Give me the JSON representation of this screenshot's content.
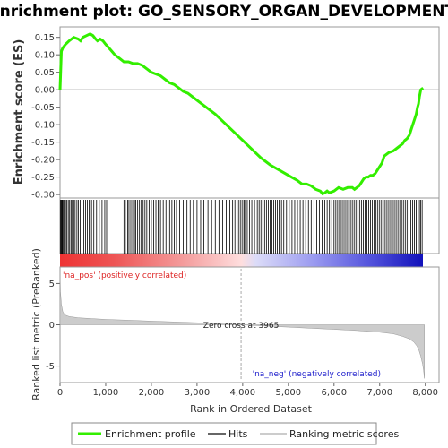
{
  "chart_data": {
    "type": "line",
    "title": "Enrichment plot: GO_SENSORY_ORGAN_DEVELOPMENT",
    "es_panel": {
      "ylabel": "Enrichment score (ES)",
      "yticks": [
        "0.15",
        "0.10",
        "0.05",
        "0.00",
        "-0.05",
        "-0.10",
        "-0.15",
        "-0.20",
        "-0.25",
        "-0.30"
      ],
      "ylim": [
        -0.31,
        0.18
      ],
      "series": [
        {
          "name": "Enrichment profile",
          "color": "#33ee00",
          "x": [
            0,
            30,
            60,
            120,
            200,
            300,
            400,
            450,
            500,
            580,
            660,
            720,
            780,
            820,
            880,
            940,
            1000,
            1100,
            1200,
            1300,
            1400,
            1500,
            1600,
            1700,
            1800,
            1900,
            2000,
            2100,
            2200,
            2300,
            2400,
            2500,
            2600,
            2700,
            2800,
            2900,
            3000,
            3200,
            3400,
            3600,
            3800,
            4000,
            4200,
            4400,
            4600,
            4800,
            5000,
            5200,
            5300,
            5400,
            5500,
            5600,
            5700,
            5750,
            5800,
            5850,
            5900,
            6000,
            6100,
            6200,
            6300,
            6400,
            6450,
            6500,
            6550,
            6600,
            6650,
            6700,
            6750,
            6800,
            6850,
            6900,
            6950,
            7000,
            7050,
            7100,
            7200,
            7300,
            7400,
            7500,
            7550,
            7600,
            7650,
            7700,
            7750,
            7800,
            7830,
            7850,
            7870,
            7900,
            7950
          ],
          "values": [
            0.0,
            0.11,
            0.12,
            0.13,
            0.14,
            0.15,
            0.145,
            0.14,
            0.15,
            0.155,
            0.16,
            0.155,
            0.145,
            0.14,
            0.145,
            0.14,
            0.13,
            0.115,
            0.1,
            0.09,
            0.08,
            0.08,
            0.075,
            0.075,
            0.07,
            0.06,
            0.05,
            0.045,
            0.04,
            0.03,
            0.02,
            0.015,
            0.005,
            -0.005,
            -0.01,
            -0.02,
            -0.03,
            -0.05,
            -0.07,
            -0.095,
            -0.12,
            -0.145,
            -0.17,
            -0.195,
            -0.215,
            -0.23,
            -0.245,
            -0.26,
            -0.27,
            -0.27,
            -0.275,
            -0.285,
            -0.29,
            -0.298,
            -0.295,
            -0.29,
            -0.295,
            -0.29,
            -0.28,
            -0.285,
            -0.28,
            -0.28,
            -0.285,
            -0.28,
            -0.275,
            -0.265,
            -0.255,
            -0.25,
            -0.25,
            -0.245,
            -0.245,
            -0.24,
            -0.23,
            -0.22,
            -0.21,
            -0.19,
            -0.18,
            -0.175,
            -0.165,
            -0.155,
            -0.145,
            -0.14,
            -0.13,
            -0.11,
            -0.09,
            -0.07,
            -0.05,
            -0.04,
            -0.02,
            0.0,
            0.005
          ]
        }
      ]
    },
    "hits": {
      "name": "Hits",
      "color": "#000000",
      "positions": [
        10,
        25,
        40,
        55,
        75,
        95,
        120,
        150,
        180,
        210,
        240,
        260,
        300,
        330,
        370,
        400,
        440,
        480,
        520,
        560,
        600,
        640,
        690,
        740,
        800,
        860,
        920,
        980,
        1020,
        1400,
        1430,
        1480,
        1510,
        1550,
        1590,
        1630,
        1660,
        1700,
        1740,
        1780,
        1820,
        1860,
        1900,
        1950,
        2000,
        2050,
        2100,
        2150,
        2200,
        2260,
        2320,
        2400,
        2450,
        2500,
        2550,
        2620,
        2700,
        2780,
        2850,
        2920,
        3000,
        3080,
        3150,
        3240,
        3320,
        3400,
        3480,
        3560,
        3640,
        3720,
        3780,
        3830,
        3880,
        3920,
        3960,
        4000,
        4030,
        4060,
        4100,
        4150,
        4200,
        4260,
        4320,
        4360,
        4400,
        4440,
        4480,
        4520,
        4560,
        4600,
        4640,
        4680,
        4720,
        4760,
        4800,
        4850,
        4900,
        4960,
        5020,
        5080,
        5140,
        5200,
        5260,
        5320,
        5380,
        5440,
        5500,
        5560,
        5620,
        5680,
        5740,
        5800,
        5850,
        5900,
        5950,
        6000,
        6040,
        6080,
        6120,
        6160,
        6200,
        6240,
        6280,
        6320,
        6360,
        6400,
        6440,
        6480,
        6520,
        6560,
        6600,
        6640,
        6680,
        6720,
        6760,
        6800,
        6840,
        6880,
        6920,
        6960,
        7000,
        7040,
        7080,
        7120,
        7160,
        7200,
        7240,
        7280,
        7320,
        7360,
        7400,
        7440,
        7480,
        7520,
        7560,
        7600,
        7640,
        7680,
        7720,
        7760,
        7800,
        7840,
        7870,
        7900,
        7930
      ]
    },
    "color_bar": {
      "pos_label": "'na_pos' (positively correlated)",
      "neg_label": "'na_neg' (negatively correlated)",
      "pos_color": "#dd2222",
      "neg_color": "#2222cc"
    },
    "metric_panel": {
      "name": "Ranking metric scores",
      "ylabel": "Ranked list metric (PreRanked)",
      "yticks": [
        "5",
        "0",
        "-5"
      ],
      "ylim": [
        -7,
        7
      ],
      "x": [
        0,
        10,
        30,
        60,
        100,
        200,
        400,
        700,
        1000,
        1500,
        2000,
        2500,
        3000,
        3500,
        3965,
        4500,
        5000,
        5500,
        6000,
        6500,
        7000,
        7300,
        7500,
        7650,
        7750,
        7820,
        7860,
        7900,
        7940,
        7960,
        7980
      ],
      "values": [
        6.5,
        4.0,
        2.5,
        1.6,
        1.2,
        1.0,
        0.85,
        0.75,
        0.65,
        0.55,
        0.45,
        0.35,
        0.25,
        0.12,
        0.0,
        -0.15,
        -0.28,
        -0.42,
        -0.55,
        -0.7,
        -0.9,
        -1.1,
        -1.4,
        -1.7,
        -2.1,
        -2.6,
        -3.1,
        -3.8,
        -4.8,
        -5.5,
        -6.5
      ],
      "zero_cross_label": "Zero cross at 3965",
      "zero_cross": 3965
    },
    "x_axis": {
      "xlabel": "Rank in Ordered Dataset",
      "xticks": [
        "0",
        "1,000",
        "2,000",
        "3,000",
        "4,000",
        "5,000",
        "6,000",
        "7,000",
        "8,000"
      ],
      "xtick_values": [
        0,
        1000,
        2000,
        3000,
        4000,
        5000,
        6000,
        7000,
        8000
      ],
      "xlim": [
        0,
        8300
      ]
    },
    "legend": [
      {
        "label": "Enrichment profile",
        "color": "#33ee00"
      },
      {
        "label": "Hits",
        "color": "#666666"
      },
      {
        "label": "Ranking metric scores",
        "color": "#cccccc"
      }
    ]
  }
}
